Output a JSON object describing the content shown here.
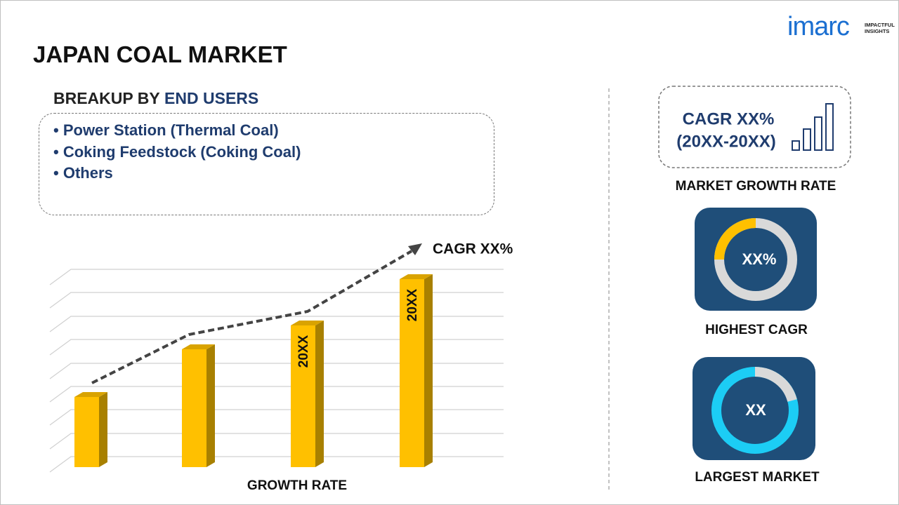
{
  "logo": {
    "name": "imarc",
    "tagline": "IMPACTFUL INSIGHTS"
  },
  "title": "JAPAN COAL MARKET",
  "breakup": {
    "label": "BREAKUP BY",
    "highlight": "END USERS",
    "items": [
      "Power Station (Thermal Coal)",
      "Coking Feedstock (Coking Coal)",
      "Others"
    ]
  },
  "growth_chart": {
    "cagr": "CAGR XX%",
    "bar_labels": [
      "20XX",
      "20XX"
    ],
    "axis_label": "GROWTH RATE"
  },
  "panel": {
    "cagr": "CAGR XX%",
    "period": "(20XX-20XX)",
    "growth_label": "MARKET GROWTH RATE",
    "highest": {
      "value": "XX%",
      "label": "HIGHEST CAGR"
    },
    "largest": {
      "value": "XX",
      "label": "LARGEST MARKET"
    }
  }
}
